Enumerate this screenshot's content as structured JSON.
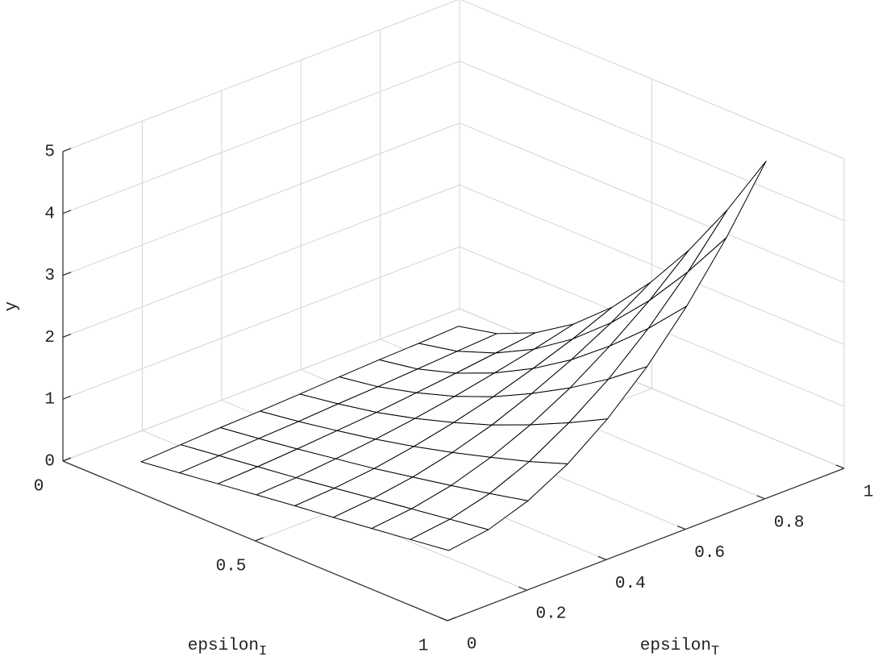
{
  "chart_data": {
    "type": "surface",
    "xlabel": [
      "epsilon",
      "I"
    ],
    "ylabel": [
      "epsilon",
      "T"
    ],
    "zlabel": "y",
    "x": [
      0.1,
      0.2,
      0.3,
      0.4,
      0.5,
      0.6,
      0.7,
      0.8,
      0.9
    ],
    "y": [
      0.1,
      0.2,
      0.3,
      0.4,
      0.5,
      0.6,
      0.7,
      0.8,
      0.9
    ],
    "z": [
      [
        0,
        0.03,
        0.06,
        0.08,
        0.11,
        0.14,
        0.17,
        0.19,
        0.22
      ],
      [
        0.08,
        0.11,
        0.14,
        0.17,
        0.21,
        0.24,
        0.28,
        0.32,
        0.36
      ],
      [
        0.16,
        0.19,
        0.23,
        0.28,
        0.33,
        0.4,
        0.47,
        0.55,
        0.63
      ],
      [
        0.24,
        0.27,
        0.33,
        0.4,
        0.49,
        0.6,
        0.73,
        0.87,
        1.03
      ],
      [
        0.32,
        0.36,
        0.43,
        0.54,
        0.68,
        0.85,
        1.06,
        1.29,
        1.56
      ],
      [
        0.39,
        0.45,
        0.55,
        0.7,
        0.9,
        1.16,
        1.46,
        1.81,
        2.22
      ],
      [
        0.47,
        0.54,
        0.67,
        0.88,
        1.16,
        1.51,
        1.94,
        2.43,
        3.0
      ],
      [
        0.55,
        0.63,
        0.8,
        1.07,
        1.45,
        1.91,
        2.48,
        3.15,
        3.91
      ],
      [
        0.63,
        0.72,
        0.94,
        1.29,
        1.77,
        2.37,
        3.1,
        3.96,
        4.95
      ]
    ],
    "xlim": [
      0,
      1
    ],
    "xticks": [
      0,
      0.5,
      1
    ],
    "ylim": [
      0,
      1
    ],
    "yticks": [
      0,
      0.2,
      0.4,
      0.6,
      0.8,
      1
    ],
    "zlim": [
      0,
      5
    ],
    "zticks": [
      0,
      1,
      2,
      3,
      4,
      5
    ],
    "grid": true,
    "color": "#000000",
    "face_color": "#ffffff"
  }
}
